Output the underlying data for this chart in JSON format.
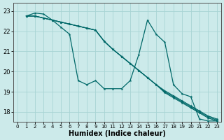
{
  "xlabel": "Humidex (Indice chaleur)",
  "xlim": [
    -0.5,
    23.5
  ],
  "ylim": [
    17.5,
    23.4
  ],
  "yticks": [
    18,
    19,
    20,
    21,
    22,
    23
  ],
  "xticks": [
    0,
    1,
    2,
    3,
    4,
    5,
    6,
    7,
    8,
    9,
    10,
    11,
    12,
    13,
    14,
    15,
    16,
    17,
    18,
    19,
    20,
    21,
    22,
    23
  ],
  "bg_color": "#cceaea",
  "grid_color": "#a8d4d4",
  "line_color": "#006868",
  "wiggly_x": [
    1,
    2,
    3,
    4,
    5,
    6,
    7,
    8,
    9,
    10,
    11,
    12,
    13,
    14,
    15,
    16,
    17,
    18,
    19,
    20,
    21,
    22,
    23
  ],
  "wiggly_y": [
    22.75,
    22.9,
    22.85,
    22.55,
    22.2,
    21.85,
    19.55,
    19.35,
    19.55,
    19.15,
    19.15,
    19.15,
    19.55,
    20.85,
    22.55,
    21.85,
    21.45,
    19.35,
    18.9,
    18.75,
    17.65,
    17.55,
    17.55
  ],
  "diag1_x": [
    1,
    2,
    3,
    4,
    5,
    6,
    7,
    8,
    9,
    10,
    11,
    12,
    13,
    14,
    15,
    16,
    17,
    18,
    19,
    20,
    21,
    22,
    23
  ],
  "diag1_y": [
    22.75,
    22.75,
    22.65,
    22.55,
    22.45,
    22.35,
    22.25,
    22.15,
    22.05,
    21.5,
    21.1,
    20.75,
    20.4,
    20.05,
    19.7,
    19.35,
    18.95,
    18.7,
    18.45,
    18.2,
    17.95,
    17.7,
    17.55
  ],
  "diag2_x": [
    1,
    2,
    3,
    4,
    5,
    6,
    7,
    8,
    9,
    10,
    11,
    12,
    13,
    14,
    15,
    16,
    17,
    18,
    19,
    20,
    21,
    22,
    23
  ],
  "diag2_y": [
    22.75,
    22.75,
    22.65,
    22.55,
    22.45,
    22.35,
    22.25,
    22.15,
    22.05,
    21.5,
    21.1,
    20.75,
    20.4,
    20.05,
    19.7,
    19.35,
    19.0,
    18.75,
    18.5,
    18.25,
    18.0,
    17.75,
    17.6
  ],
  "diag3_x": [
    1,
    2,
    3,
    4,
    5,
    6,
    7,
    8,
    9,
    10,
    11,
    12,
    13,
    14,
    15,
    16,
    17,
    18,
    19,
    20,
    21,
    22,
    23
  ],
  "diag3_y": [
    22.75,
    22.75,
    22.65,
    22.55,
    22.45,
    22.35,
    22.25,
    22.15,
    22.05,
    21.5,
    21.1,
    20.75,
    20.4,
    20.05,
    19.7,
    19.35,
    19.05,
    18.8,
    18.55,
    18.3,
    18.05,
    17.8,
    17.65
  ]
}
